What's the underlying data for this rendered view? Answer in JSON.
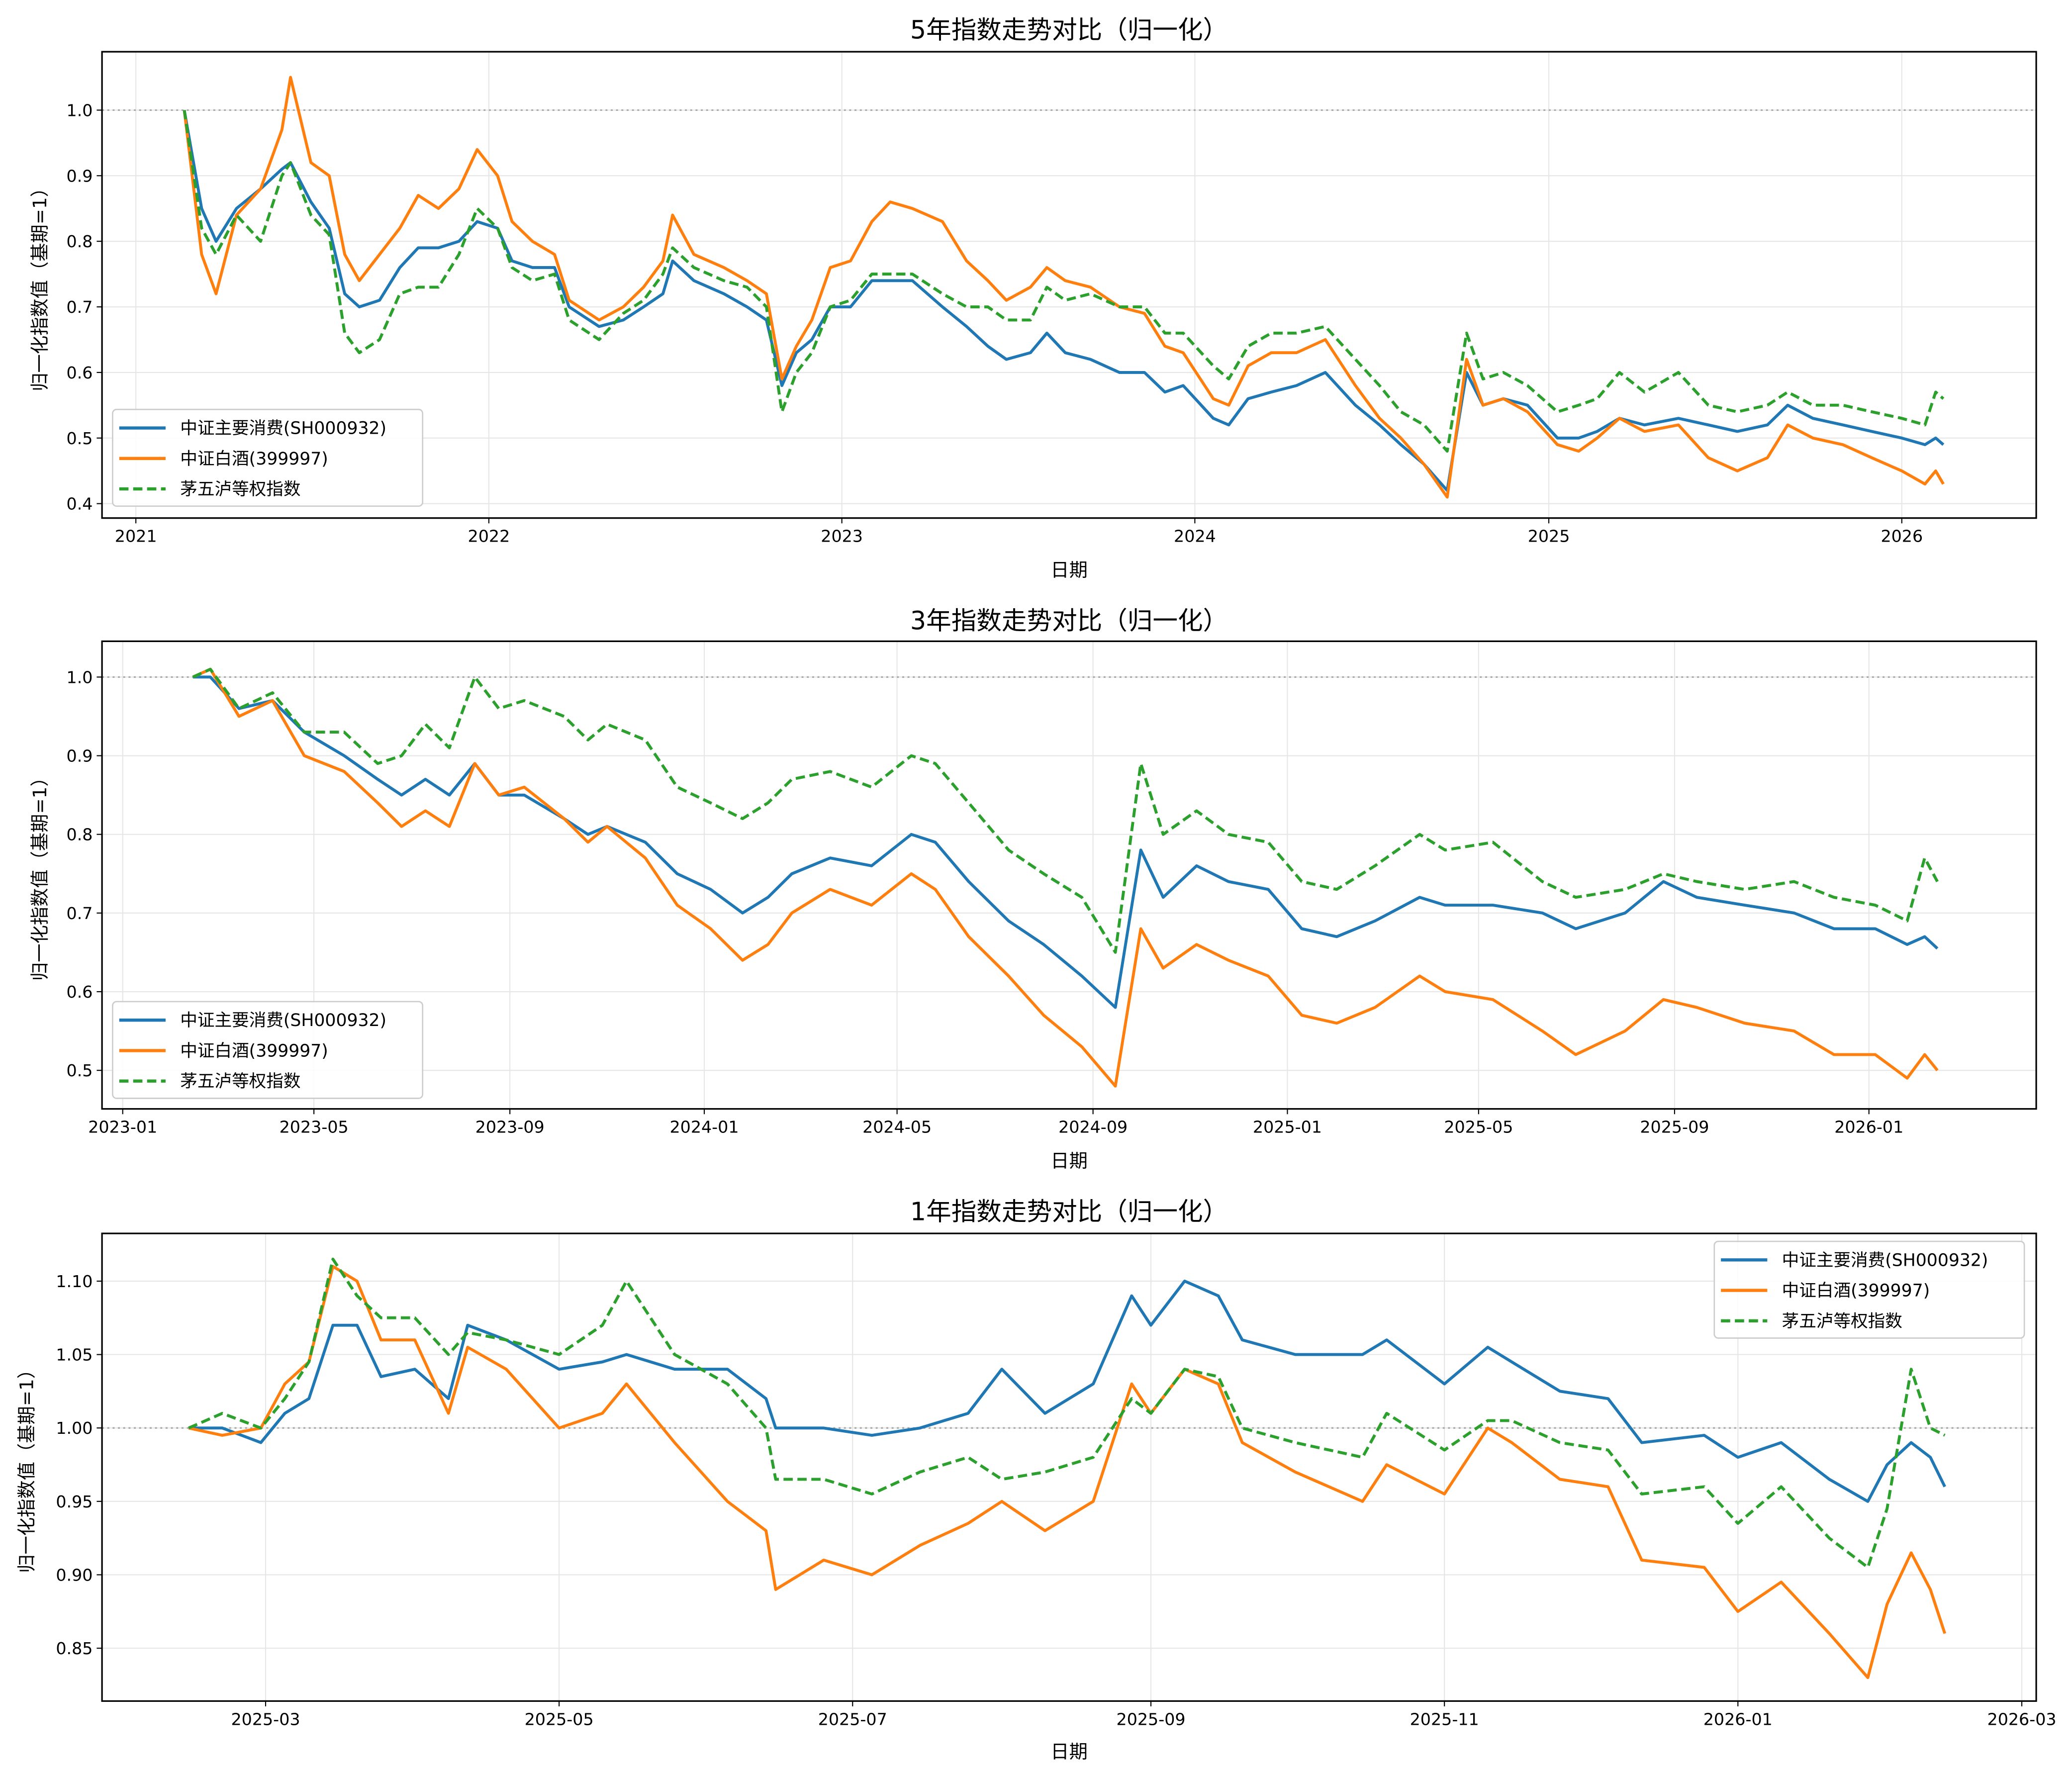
{
  "chart_data": [
    {
      "type": "line",
      "title": "5年指数走势对比（归一化）",
      "xlabel": "日期",
      "ylabel": "归一化指数值（基期=1）",
      "xlim": [
        "2020-11-27",
        "2026-05-20"
      ],
      "ylim": [
        0.378,
        1.089
      ],
      "xticks": [
        {
          "date": "2021-01-01",
          "label": "2021"
        },
        {
          "date": "2022-01-01",
          "label": "2022"
        },
        {
          "date": "2023-01-01",
          "label": "2023"
        },
        {
          "date": "2024-01-01",
          "label": "2024"
        },
        {
          "date": "2025-01-01",
          "label": "2025"
        },
        {
          "date": "2026-01-01",
          "label": "2026"
        }
      ],
      "yticks": [
        0.4,
        0.5,
        0.6,
        0.7,
        0.8,
        0.9,
        1.0
      ],
      "ytick_labels": [
        "0.4",
        "0.5",
        "0.6",
        "0.7",
        "0.8",
        "0.9",
        "1.0"
      ],
      "grid": true,
      "reference_line": 1.0,
      "legend_position": "lower-left",
      "x": [
        "2021-02-20",
        "2021-03-10",
        "2021-03-25",
        "2021-04-15",
        "2021-05-10",
        "2021-06-01",
        "2021-06-10",
        "2021-07-01",
        "2021-07-20",
        "2021-08-05",
        "2021-08-20",
        "2021-09-10",
        "2021-10-01",
        "2021-10-20",
        "2021-11-10",
        "2021-12-01",
        "2021-12-20",
        "2022-01-10",
        "2022-01-25",
        "2022-02-15",
        "2022-03-10",
        "2022-03-25",
        "2022-04-25",
        "2022-05-20",
        "2022-06-10",
        "2022-06-30",
        "2022-07-10",
        "2022-08-01",
        "2022-09-01",
        "2022-09-25",
        "2022-10-15",
        "2022-10-31",
        "2022-11-15",
        "2022-12-01",
        "2022-12-20",
        "2023-01-10",
        "2023-02-01",
        "2023-02-20",
        "2023-03-15",
        "2023-04-15",
        "2023-05-10",
        "2023-06-01",
        "2023-06-20",
        "2023-07-15",
        "2023-08-01",
        "2023-08-20",
        "2023-09-15",
        "2023-10-15",
        "2023-11-10",
        "2023-12-01",
        "2023-12-20",
        "2024-01-20",
        "2024-02-05",
        "2024-02-25",
        "2024-03-20",
        "2024-04-15",
        "2024-05-15",
        "2024-06-15",
        "2024-07-10",
        "2024-08-01",
        "2024-08-25",
        "2024-09-18",
        "2024-10-08",
        "2024-10-25",
        "2024-11-15",
        "2024-12-10",
        "2025-01-10",
        "2025-02-01",
        "2025-02-20",
        "2025-03-15",
        "2025-04-10",
        "2025-05-15",
        "2025-06-15",
        "2025-07-15",
        "2025-08-15",
        "2025-09-05",
        "2025-10-01",
        "2025-11-01",
        "2025-12-01",
        "2026-01-01",
        "2026-01-25",
        "2026-02-05",
        "2026-02-13"
      ],
      "series": [
        {
          "name": "中证主要消费(SH000932)",
          "color": "#1f77b4",
          "style": "solid",
          "values": [
            1.0,
            0.85,
            0.8,
            0.85,
            0.88,
            0.91,
            0.92,
            0.86,
            0.82,
            0.72,
            0.7,
            0.71,
            0.76,
            0.79,
            0.79,
            0.8,
            0.83,
            0.82,
            0.77,
            0.76,
            0.76,
            0.7,
            0.67,
            0.68,
            0.7,
            0.72,
            0.77,
            0.74,
            0.72,
            0.7,
            0.68,
            0.58,
            0.63,
            0.65,
            0.7,
            0.7,
            0.74,
            0.74,
            0.74,
            0.7,
            0.67,
            0.64,
            0.62,
            0.63,
            0.66,
            0.63,
            0.62,
            0.6,
            0.6,
            0.57,
            0.58,
            0.53,
            0.52,
            0.56,
            0.57,
            0.58,
            0.6,
            0.55,
            0.52,
            0.49,
            0.46,
            0.42,
            0.6,
            0.55,
            0.56,
            0.55,
            0.5,
            0.5,
            0.51,
            0.53,
            0.52,
            0.53,
            0.52,
            0.51,
            0.52,
            0.55,
            0.53,
            0.52,
            0.51,
            0.5,
            0.49,
            0.5,
            0.49
          ]
        },
        {
          "name": "中证白酒(399997)",
          "color": "#ff7f0e",
          "style": "solid",
          "values": [
            1.0,
            0.78,
            0.72,
            0.84,
            0.88,
            0.97,
            1.05,
            0.92,
            0.9,
            0.78,
            0.74,
            0.78,
            0.82,
            0.87,
            0.85,
            0.88,
            0.94,
            0.9,
            0.83,
            0.8,
            0.78,
            0.71,
            0.68,
            0.7,
            0.73,
            0.77,
            0.84,
            0.78,
            0.76,
            0.74,
            0.72,
            0.59,
            0.64,
            0.68,
            0.76,
            0.77,
            0.83,
            0.86,
            0.85,
            0.83,
            0.77,
            0.74,
            0.71,
            0.73,
            0.76,
            0.74,
            0.73,
            0.7,
            0.69,
            0.64,
            0.63,
            0.56,
            0.55,
            0.61,
            0.63,
            0.63,
            0.65,
            0.58,
            0.53,
            0.5,
            0.46,
            0.41,
            0.62,
            0.55,
            0.56,
            0.54,
            0.49,
            0.48,
            0.5,
            0.53,
            0.51,
            0.52,
            0.47,
            0.45,
            0.47,
            0.52,
            0.5,
            0.49,
            0.47,
            0.45,
            0.43,
            0.45,
            0.43
          ]
        },
        {
          "name": "茅五泸等权指数",
          "color": "#2ca02c",
          "style": "dashed",
          "values": [
            1.0,
            0.82,
            0.78,
            0.84,
            0.8,
            0.9,
            0.92,
            0.84,
            0.81,
            0.66,
            0.63,
            0.65,
            0.72,
            0.73,
            0.73,
            0.78,
            0.85,
            0.82,
            0.76,
            0.74,
            0.75,
            0.68,
            0.65,
            0.69,
            0.71,
            0.75,
            0.79,
            0.76,
            0.74,
            0.73,
            0.7,
            0.54,
            0.6,
            0.63,
            0.7,
            0.71,
            0.75,
            0.75,
            0.75,
            0.72,
            0.7,
            0.7,
            0.68,
            0.68,
            0.73,
            0.71,
            0.72,
            0.7,
            0.7,
            0.66,
            0.66,
            0.61,
            0.59,
            0.64,
            0.66,
            0.66,
            0.67,
            0.62,
            0.58,
            0.54,
            0.52,
            0.48,
            0.66,
            0.59,
            0.6,
            0.58,
            0.54,
            0.55,
            0.56,
            0.6,
            0.57,
            0.6,
            0.55,
            0.54,
            0.55,
            0.57,
            0.55,
            0.55,
            0.54,
            0.53,
            0.52,
            0.57,
            0.56
          ]
        }
      ]
    },
    {
      "type": "line",
      "title": "3年指数走势对比（归一化）",
      "xlabel": "日期",
      "ylabel": "归一化指数值（基期=1）",
      "xlim": [
        "2022-12-19",
        "2026-04-16"
      ],
      "ylim": [
        0.451,
        1.0455
      ],
      "xticks": [
        {
          "date": "2023-01-01",
          "label": "2023-01"
        },
        {
          "date": "2023-05-01",
          "label": "2023-05"
        },
        {
          "date": "2023-09-01",
          "label": "2023-09"
        },
        {
          "date": "2024-01-01",
          "label": "2024-01"
        },
        {
          "date": "2024-05-01",
          "label": "2024-05"
        },
        {
          "date": "2024-09-01",
          "label": "2024-09"
        },
        {
          "date": "2025-01-01",
          "label": "2025-01"
        },
        {
          "date": "2025-05-01",
          "label": "2025-05"
        },
        {
          "date": "2025-09-01",
          "label": "2025-09"
        },
        {
          "date": "2026-01-01",
          "label": "2026-01"
        }
      ],
      "yticks": [
        0.5,
        0.6,
        0.7,
        0.8,
        0.9,
        1.0
      ],
      "ytick_labels": [
        "0.5",
        "0.6",
        "0.7",
        "0.8",
        "0.9",
        "1.0"
      ],
      "grid": true,
      "reference_line": 1.0,
      "legend_position": "lower-left",
      "x": [
        "2023-02-14",
        "2023-02-25",
        "2023-03-15",
        "2023-04-05",
        "2023-04-25",
        "2023-05-20",
        "2023-06-10",
        "2023-06-25",
        "2023-07-10",
        "2023-07-25",
        "2023-08-10",
        "2023-08-25",
        "2023-09-10",
        "2023-10-05",
        "2023-10-20",
        "2023-11-01",
        "2023-11-25",
        "2023-12-15",
        "2024-01-05",
        "2024-01-25",
        "2024-02-10",
        "2024-02-25",
        "2024-03-20",
        "2024-04-15",
        "2024-05-10",
        "2024-05-25",
        "2024-06-15",
        "2024-07-10",
        "2024-08-01",
        "2024-08-25",
        "2024-09-15",
        "2024-10-01",
        "2024-10-15",
        "2024-11-05",
        "2024-11-25",
        "2024-12-20",
        "2025-01-10",
        "2025-02-01",
        "2025-02-25",
        "2025-03-25",
        "2025-04-10",
        "2025-05-10",
        "2025-06-10",
        "2025-07-01",
        "2025-08-01",
        "2025-08-25",
        "2025-09-15",
        "2025-10-15",
        "2025-11-15",
        "2025-12-10",
        "2026-01-05",
        "2026-01-25",
        "2026-02-05",
        "2026-02-13"
      ],
      "series": [
        {
          "name": "中证主要消费(SH000932)",
          "color": "#1f77b4",
          "style": "solid",
          "values": [
            1.0,
            1.0,
            0.96,
            0.97,
            0.93,
            0.9,
            0.87,
            0.85,
            0.87,
            0.85,
            0.89,
            0.85,
            0.85,
            0.82,
            0.8,
            0.81,
            0.79,
            0.75,
            0.73,
            0.7,
            0.72,
            0.75,
            0.77,
            0.76,
            0.8,
            0.79,
            0.74,
            0.69,
            0.66,
            0.62,
            0.58,
            0.78,
            0.72,
            0.76,
            0.74,
            0.73,
            0.68,
            0.67,
            0.69,
            0.72,
            0.71,
            0.71,
            0.7,
            0.68,
            0.7,
            0.74,
            0.72,
            0.71,
            0.7,
            0.68,
            0.68,
            0.66,
            0.67,
            0.655
          ]
        },
        {
          "name": "中证白酒(399997)",
          "color": "#ff7f0e",
          "style": "solid",
          "values": [
            1.0,
            1.01,
            0.95,
            0.97,
            0.9,
            0.88,
            0.84,
            0.81,
            0.83,
            0.81,
            0.89,
            0.85,
            0.86,
            0.82,
            0.79,
            0.81,
            0.77,
            0.71,
            0.68,
            0.64,
            0.66,
            0.7,
            0.73,
            0.71,
            0.75,
            0.73,
            0.67,
            0.62,
            0.57,
            0.53,
            0.48,
            0.68,
            0.63,
            0.66,
            0.64,
            0.62,
            0.57,
            0.56,
            0.58,
            0.62,
            0.6,
            0.59,
            0.55,
            0.52,
            0.55,
            0.59,
            0.58,
            0.56,
            0.55,
            0.52,
            0.52,
            0.49,
            0.52,
            0.5
          ]
        },
        {
          "name": "茅五泸等权指数",
          "color": "#2ca02c",
          "style": "dashed",
          "values": [
            1.0,
            1.01,
            0.96,
            0.98,
            0.93,
            0.93,
            0.89,
            0.9,
            0.94,
            0.91,
            1.0,
            0.96,
            0.97,
            0.95,
            0.92,
            0.94,
            0.92,
            0.86,
            0.84,
            0.82,
            0.84,
            0.87,
            0.88,
            0.86,
            0.9,
            0.89,
            0.84,
            0.78,
            0.75,
            0.72,
            0.65,
            0.89,
            0.8,
            0.83,
            0.8,
            0.79,
            0.74,
            0.73,
            0.76,
            0.8,
            0.78,
            0.79,
            0.74,
            0.72,
            0.73,
            0.75,
            0.74,
            0.73,
            0.74,
            0.72,
            0.71,
            0.69,
            0.77,
            0.74
          ]
        }
      ]
    },
    {
      "type": "line",
      "title": "1年指数走势对比（归一化）",
      "xlabel": "日期",
      "ylabel": "归一化指数值（基期=1）",
      "xlim": [
        "2025-01-26",
        "2026-03-04"
      ],
      "ylim": [
        0.814,
        1.1325
      ],
      "xticks": [
        {
          "date": "2025-03-01",
          "label": "2025-03"
        },
        {
          "date": "2025-05-01",
          "label": "2025-05"
        },
        {
          "date": "2025-07-01",
          "label": "2025-07"
        },
        {
          "date": "2025-09-01",
          "label": "2025-09"
        },
        {
          "date": "2025-11-01",
          "label": "2025-11"
        },
        {
          "date": "2026-01-01",
          "label": "2026-01"
        },
        {
          "date": "2026-03-01",
          "label": "2026-03"
        }
      ],
      "yticks": [
        0.85,
        0.9,
        0.95,
        1.0,
        1.05,
        1.1
      ],
      "ytick_labels": [
        "0.85",
        "0.90",
        "0.95",
        "1.00",
        "1.05",
        "1.10"
      ],
      "grid": true,
      "reference_line": 1.0,
      "legend_position": "upper-right",
      "x": [
        "2025-02-13",
        "2025-02-20",
        "2025-02-28",
        "2025-03-05",
        "2025-03-10",
        "2025-03-15",
        "2025-03-20",
        "2025-03-25",
        "2025-04-01",
        "2025-04-08",
        "2025-04-12",
        "2025-04-20",
        "2025-05-01",
        "2025-05-10",
        "2025-05-15",
        "2025-05-25",
        "2025-06-05",
        "2025-06-13",
        "2025-06-15",
        "2025-06-25",
        "2025-07-05",
        "2025-07-15",
        "2025-07-25",
        "2025-08-01",
        "2025-08-10",
        "2025-08-20",
        "2025-08-28",
        "2025-09-01",
        "2025-09-08",
        "2025-09-15",
        "2025-09-20",
        "2025-10-01",
        "2025-10-15",
        "2025-10-20",
        "2025-11-01",
        "2025-11-10",
        "2025-11-15",
        "2025-11-25",
        "2025-12-05",
        "2025-12-12",
        "2025-12-25",
        "2026-01-01",
        "2026-01-10",
        "2026-01-20",
        "2026-01-28",
        "2026-02-01",
        "2026-02-06",
        "2026-02-10",
        "2026-02-13"
      ],
      "series": [
        {
          "name": "中证主要消费(SH000932)",
          "color": "#1f77b4",
          "style": "solid",
          "values": [
            1.0,
            1.0,
            0.99,
            1.01,
            1.02,
            1.07,
            1.07,
            1.035,
            1.04,
            1.02,
            1.07,
            1.06,
            1.04,
            1.045,
            1.05,
            1.04,
            1.04,
            1.02,
            1.0,
            1.0,
            0.995,
            1.0,
            1.01,
            1.04,
            1.01,
            1.03,
            1.09,
            1.07,
            1.1,
            1.09,
            1.06,
            1.05,
            1.05,
            1.06,
            1.03,
            1.055,
            1.045,
            1.025,
            1.02,
            0.99,
            0.995,
            0.98,
            0.99,
            0.965,
            0.95,
            0.975,
            0.99,
            0.98,
            0.96
          ]
        },
        {
          "name": "中证白酒(399997)",
          "color": "#ff7f0e",
          "style": "solid",
          "values": [
            1.0,
            0.995,
            1.0,
            1.03,
            1.045,
            1.11,
            1.1,
            1.06,
            1.06,
            1.01,
            1.055,
            1.04,
            1.0,
            1.01,
            1.03,
            0.99,
            0.95,
            0.93,
            0.89,
            0.91,
            0.9,
            0.92,
            0.935,
            0.95,
            0.93,
            0.95,
            1.03,
            1.01,
            1.04,
            1.03,
            0.99,
            0.97,
            0.95,
            0.975,
            0.955,
            1.0,
            0.99,
            0.965,
            0.96,
            0.91,
            0.905,
            0.875,
            0.895,
            0.86,
            0.83,
            0.88,
            0.915,
            0.89,
            0.86
          ]
        },
        {
          "name": "茅五泸等权指数",
          "color": "#2ca02c",
          "style": "dashed",
          "values": [
            1.0,
            1.01,
            1.0,
            1.02,
            1.045,
            1.115,
            1.09,
            1.075,
            1.075,
            1.05,
            1.065,
            1.06,
            1.05,
            1.07,
            1.1,
            1.05,
            1.03,
            1.0,
            0.965,
            0.965,
            0.955,
            0.97,
            0.98,
            0.965,
            0.97,
            0.98,
            1.02,
            1.01,
            1.04,
            1.035,
            1.0,
            0.99,
            0.98,
            1.01,
            0.985,
            1.005,
            1.005,
            0.99,
            0.985,
            0.955,
            0.96,
            0.935,
            0.96,
            0.925,
            0.905,
            0.945,
            1.04,
            1.0,
            0.995
          ]
        }
      ]
    }
  ]
}
